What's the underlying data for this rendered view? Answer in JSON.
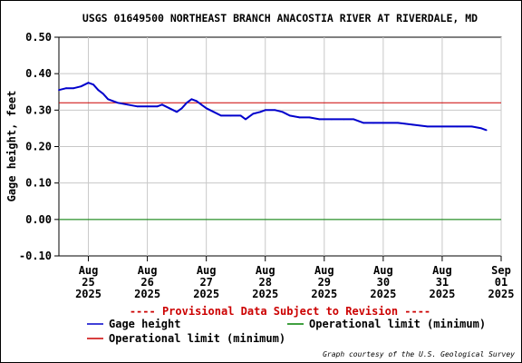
{
  "chart_data": {
    "type": "line",
    "title": "USGS 01649500 NORTHEAST BRANCH ANACOSTIA RIVER AT RIVERDALE, MD",
    "ylabel": "Gage height, feet",
    "xlabel": "",
    "ylim": [
      -0.1,
      0.5
    ],
    "yticks": [
      "0.50",
      "0.40",
      "0.30",
      "0.20",
      "0.10",
      "0.00",
      "-0.10"
    ],
    "xlim": [
      "2025-08-24T12:00",
      "2025-09-01T00:00"
    ],
    "xticks": [
      {
        "date": "2025-08-25T00:00",
        "month": "Aug",
        "day": "25",
        "year": "2025"
      },
      {
        "date": "2025-08-26T00:00",
        "month": "Aug",
        "day": "26",
        "year": "2025"
      },
      {
        "date": "2025-08-27T00:00",
        "month": "Aug",
        "day": "27",
        "year": "2025"
      },
      {
        "date": "2025-08-28T00:00",
        "month": "Aug",
        "day": "28",
        "year": "2025"
      },
      {
        "date": "2025-08-29T00:00",
        "month": "Aug",
        "day": "29",
        "year": "2025"
      },
      {
        "date": "2025-08-30T00:00",
        "month": "Aug",
        "day": "30",
        "year": "2025"
      },
      {
        "date": "2025-08-31T00:00",
        "month": "Aug",
        "day": "31",
        "year": "2025"
      },
      {
        "date": "2025-09-01T00:00",
        "month": "Sep",
        "day": "01",
        "year": "2025"
      }
    ],
    "grid": true,
    "series": [
      {
        "name": "Gage height",
        "color": "#0000cc",
        "points": [
          [
            "2025-08-24T12:00",
            0.355
          ],
          [
            "2025-08-24T15:00",
            0.36
          ],
          [
            "2025-08-24T18:00",
            0.36
          ],
          [
            "2025-08-24T21:00",
            0.365
          ],
          [
            "2025-08-25T00:00",
            0.375
          ],
          [
            "2025-08-25T02:00",
            0.37
          ],
          [
            "2025-08-25T04:00",
            0.355
          ],
          [
            "2025-08-25T06:00",
            0.345
          ],
          [
            "2025-08-25T08:00",
            0.33
          ],
          [
            "2025-08-25T10:00",
            0.325
          ],
          [
            "2025-08-25T12:00",
            0.32
          ],
          [
            "2025-08-25T16:00",
            0.315
          ],
          [
            "2025-08-25T20:00",
            0.31
          ],
          [
            "2025-08-26T00:00",
            0.31
          ],
          [
            "2025-08-26T04:00",
            0.31
          ],
          [
            "2025-08-26T06:00",
            0.315
          ],
          [
            "2025-08-26T09:00",
            0.305
          ],
          [
            "2025-08-26T12:00",
            0.295
          ],
          [
            "2025-08-26T14:00",
            0.305
          ],
          [
            "2025-08-26T16:00",
            0.32
          ],
          [
            "2025-08-26T18:00",
            0.33
          ],
          [
            "2025-08-26T20:00",
            0.325
          ],
          [
            "2025-08-26T22:00",
            0.315
          ],
          [
            "2025-08-27T00:00",
            0.305
          ],
          [
            "2025-08-27T03:00",
            0.295
          ],
          [
            "2025-08-27T06:00",
            0.285
          ],
          [
            "2025-08-27T10:00",
            0.285
          ],
          [
            "2025-08-27T14:00",
            0.285
          ],
          [
            "2025-08-27T16:00",
            0.275
          ],
          [
            "2025-08-27T19:00",
            0.29
          ],
          [
            "2025-08-27T22:00",
            0.295
          ],
          [
            "2025-08-28T00:00",
            0.3
          ],
          [
            "2025-08-28T04:00",
            0.3
          ],
          [
            "2025-08-28T07:00",
            0.295
          ],
          [
            "2025-08-28T10:00",
            0.285
          ],
          [
            "2025-08-28T14:00",
            0.28
          ],
          [
            "2025-08-28T18:00",
            0.28
          ],
          [
            "2025-08-28T22:00",
            0.275
          ],
          [
            "2025-08-29T03:00",
            0.275
          ],
          [
            "2025-08-29T08:00",
            0.275
          ],
          [
            "2025-08-29T12:00",
            0.275
          ],
          [
            "2025-08-29T16:00",
            0.265
          ],
          [
            "2025-08-29T20:00",
            0.265
          ],
          [
            "2025-08-30T00:00",
            0.265
          ],
          [
            "2025-08-30T06:00",
            0.265
          ],
          [
            "2025-08-30T12:00",
            0.26
          ],
          [
            "2025-08-30T18:00",
            0.255
          ],
          [
            "2025-08-31T00:00",
            0.255
          ],
          [
            "2025-08-31T06:00",
            0.255
          ],
          [
            "2025-08-31T12:00",
            0.255
          ],
          [
            "2025-08-31T16:00",
            0.25
          ],
          [
            "2025-08-31T18:00",
            0.245
          ]
        ]
      },
      {
        "name": "Operational limit (minimum)",
        "color": "#008000",
        "value": 0.0
      },
      {
        "name": "Operational limit (minimum)",
        "color": "#cc0000",
        "value": 0.32
      }
    ],
    "annotations": [
      "---- Provisional Data Subject to Revision ----"
    ],
    "legend_placement": "bottom-left",
    "credit": "Graph courtesy of the U.S. Geological Survey"
  }
}
